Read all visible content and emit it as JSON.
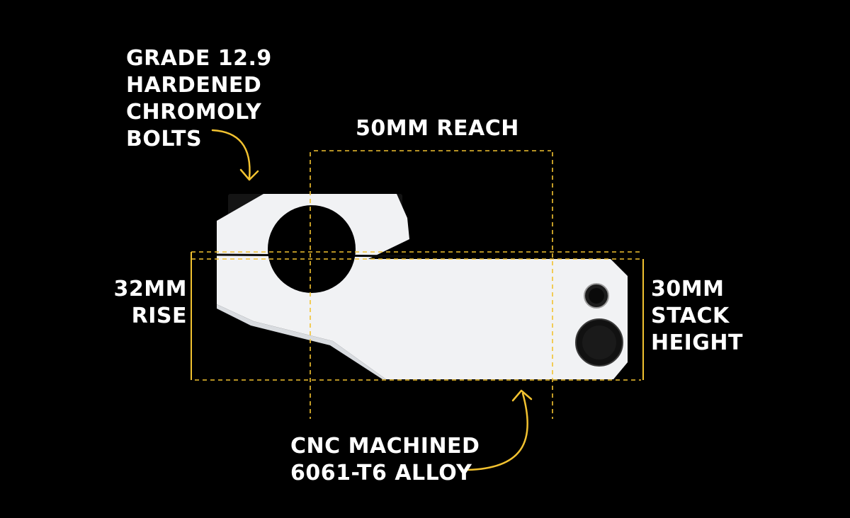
{
  "labels": {
    "bolts": [
      "GRADE 12.9",
      "HARDENED",
      "CHROMOLY",
      "BOLTS"
    ],
    "reach": "50MM REACH",
    "rise": [
      "32MM",
      "RISE"
    ],
    "stack": [
      "30MM",
      "STACK",
      "HEIGHT"
    ],
    "material": [
      "CNC MACHINED",
      "6061-T6 ALLOY"
    ]
  },
  "colors": {
    "background": "#000000",
    "stem_body": "#f1f2f4",
    "stem_shadow": "#d9dce0",
    "bolt": "#141414",
    "dimension_line": "#f2c230",
    "text": "#ffffff"
  },
  "icons": {
    "bolts_arrow": "curved-arrow-down-icon",
    "material_arrow": "curved-arrow-up-icon"
  }
}
